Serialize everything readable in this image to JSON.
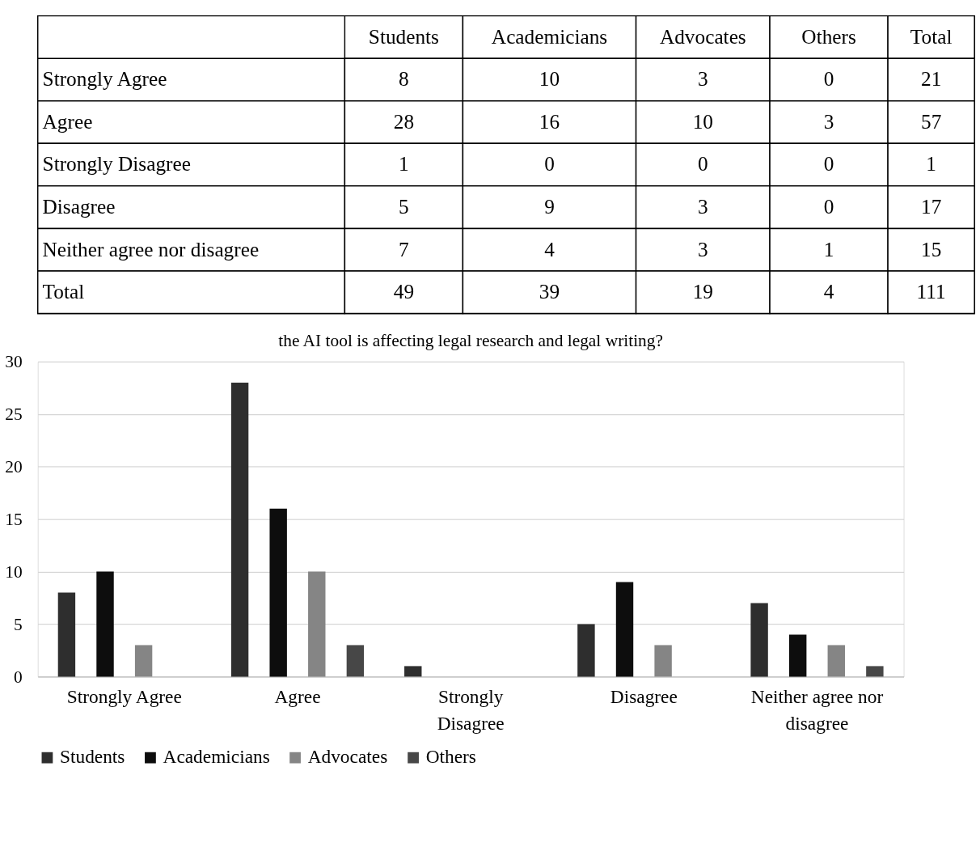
{
  "chart_data": {
    "type": "bar",
    "title": "the AI tool is affecting legal research and legal writing?",
    "categories": [
      "Strongly Agree",
      "Agree",
      "Strongly Disagree",
      "Disagree",
      "Neither agree nor disagree"
    ],
    "series": [
      {
        "name": "Students",
        "color": "#2e2e2e",
        "values": [
          8,
          28,
          1,
          5,
          7
        ]
      },
      {
        "name": "Academicians",
        "color": "#0d0d0d",
        "values": [
          10,
          16,
          0,
          9,
          4
        ]
      },
      {
        "name": "Advocates",
        "color": "#858585",
        "values": [
          3,
          10,
          0,
          3,
          3
        ]
      },
      {
        "name": "Others",
        "color": "#474747",
        "values": [
          0,
          3,
          0,
          0,
          1
        ]
      }
    ],
    "ylim": [
      0,
      30
    ],
    "yticks": [
      0,
      5,
      10,
      15,
      20,
      25,
      30
    ],
    "grid": "y",
    "legend": "bottom",
    "annotations": [
      "Total",
      "8",
      "10",
      "3",
      "0",
      "21",
      "28",
      "16",
      "10",
      "3",
      "57",
      "1",
      "0",
      "0",
      "0",
      "1",
      "5",
      "9",
      "3",
      "0",
      "17",
      "7",
      "4",
      "3",
      "1",
      "15",
      "49",
      "39",
      "19",
      "4",
      "111"
    ]
  }
}
